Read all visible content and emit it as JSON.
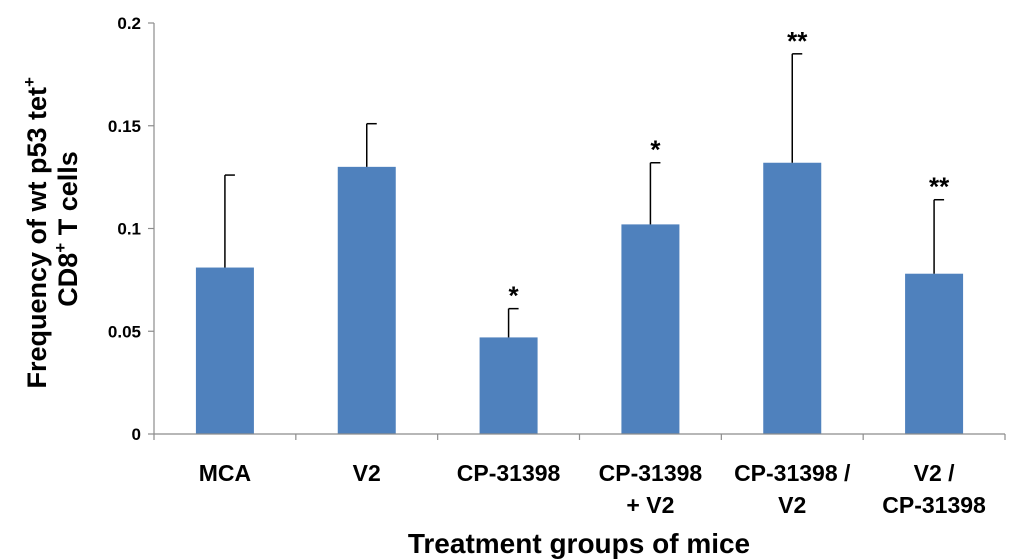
{
  "chart_data": {
    "type": "bar",
    "xlabel": "Treatment groups of mice",
    "ylabel": {
      "line1": {
        "main": "Frequency of wt p53 tet",
        "sup": "+"
      },
      "line2": {
        "pre": "CD8",
        "sup": "+",
        "post": " T cells"
      }
    },
    "categories": [
      [
        "MCA"
      ],
      [
        "V2"
      ],
      [
        "CP-31398"
      ],
      [
        "CP-31398",
        "+ V2"
      ],
      [
        "CP-31398 /",
        "V2"
      ],
      [
        "V2 /",
        "CP-31398"
      ]
    ],
    "values": [
      0.081,
      0.13,
      0.047,
      0.102,
      0.132,
      0.078
    ],
    "error_bars": [
      0.045,
      0.021,
      0.014,
      0.03,
      0.053,
      0.036
    ],
    "significance": [
      "",
      "",
      "*",
      "*",
      "**",
      "**"
    ],
    "ylim": [
      0,
      0.2
    ],
    "yticks": [
      "0",
      "0.05",
      "0.1",
      "0.15",
      "0.2"
    ],
    "ytick_values": [
      0,
      0.05,
      0.1,
      0.15,
      0.2
    ],
    "grid": false,
    "colors": {
      "bar": "#4f81bd",
      "axis": "#8c8c8c",
      "text": "#000000"
    }
  }
}
